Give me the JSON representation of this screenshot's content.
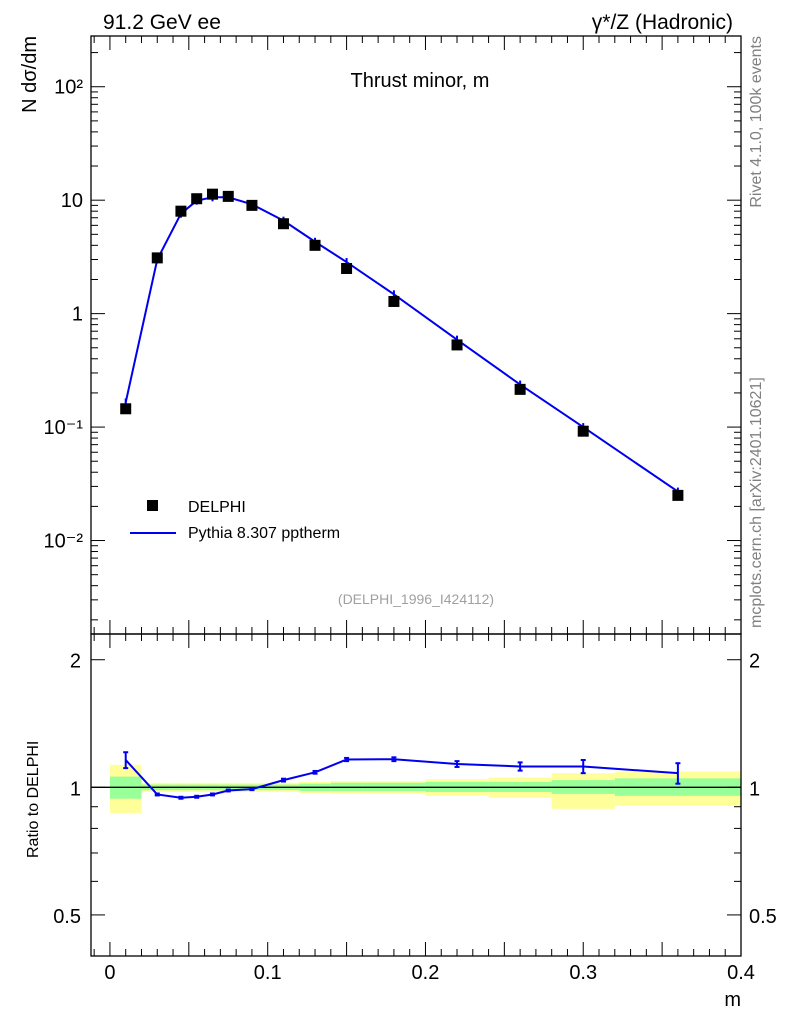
{
  "header": {
    "left": "91.2 GeV ee",
    "right": "γ*/Z (Hadronic)"
  },
  "side": {
    "rivet": "Rivet 4.1.0,  100k events",
    "source": "mcplots.cern.ch [arXiv:2401.10621]"
  },
  "chart_data": [
    {
      "type": "scatter",
      "panel": "main",
      "title": "Thrust minor, m",
      "ylabel": "N  dσ/dm",
      "analysis_label": "(DELPHI_1996_I424112)",
      "yscale": "log",
      "xlim": [
        -0.012,
        0.4
      ],
      "ylim": [
        0.0015,
        280
      ],
      "ytick_labels": [
        "10⁻²",
        "10⁻¹",
        "1",
        "10",
        "10²"
      ],
      "ytick_values": [
        0.01,
        0.1,
        1,
        10,
        100
      ],
      "legend": [
        "DELPHI",
        "Pythia 8.307 pptherm"
      ],
      "series": [
        {
          "name": "DELPHI",
          "style": "markers",
          "x": [
            0.01,
            0.03,
            0.045,
            0.055,
            0.065,
            0.075,
            0.09,
            0.11,
            0.13,
            0.15,
            0.18,
            0.22,
            0.26,
            0.3,
            0.36
          ],
          "y": [
            0.145,
            3.1,
            8.0,
            10.3,
            11.3,
            10.8,
            9.0,
            6.2,
            4.0,
            2.5,
            1.28,
            0.53,
            0.215,
            0.092,
            0.025
          ]
        },
        {
          "name": "Pythia 8.307 pptherm",
          "style": "line",
          "color": "#0000ee",
          "x": [
            0.01,
            0.03,
            0.045,
            0.055,
            0.065,
            0.075,
            0.09,
            0.11,
            0.13,
            0.15,
            0.18,
            0.22,
            0.26,
            0.3,
            0.36
          ],
          "y": [
            0.165,
            3.0,
            7.6,
            9.9,
            10.6,
            10.6,
            9.2,
            6.6,
            4.3,
            2.85,
            1.48,
            0.59,
            0.237,
            0.1,
            0.027
          ]
        }
      ]
    },
    {
      "type": "line",
      "panel": "ratio",
      "ylabel": "Ratio to DELPHI",
      "xlabel": "m",
      "xlim": [
        -0.012,
        0.4
      ],
      "ylim": [
        0.4,
        2.3
      ],
      "xtick_labels": [
        "0",
        "0.1",
        "0.2",
        "0.3",
        "0.4"
      ],
      "xtick_values": [
        0,
        0.1,
        0.2,
        0.3,
        0.4
      ],
      "ytick_labels": [
        "0.5",
        "1",
        "2"
      ],
      "ytick_values": [
        0.5,
        1,
        2
      ],
      "reference": 1,
      "bands": {
        "edges": [
          0.0,
          0.02,
          0.04,
          0.05,
          0.06,
          0.07,
          0.08,
          0.1,
          0.12,
          0.14,
          0.16,
          0.2,
          0.24,
          0.28,
          0.32,
          0.4
        ],
        "inner_lo": [
          0.94,
          0.985,
          0.985,
          0.985,
          0.985,
          0.985,
          0.985,
          0.985,
          0.98,
          0.98,
          0.98,
          0.975,
          0.975,
          0.965,
          0.955
        ],
        "inner_hi": [
          1.06,
          1.015,
          1.015,
          1.015,
          1.015,
          1.015,
          1.015,
          1.015,
          1.02,
          1.025,
          1.025,
          1.03,
          1.03,
          1.04,
          1.05
        ],
        "outer_lo": [
          0.87,
          0.975,
          0.975,
          0.975,
          0.975,
          0.975,
          0.975,
          0.975,
          0.97,
          0.965,
          0.965,
          0.955,
          0.945,
          0.89,
          0.905
        ],
        "outer_hi": [
          1.13,
          1.025,
          1.025,
          1.025,
          1.025,
          1.025,
          1.025,
          1.025,
          1.03,
          1.035,
          1.035,
          1.045,
          1.055,
          1.08,
          1.09
        ],
        "inner_color": "#99ff99",
        "outer_color": "#ffff99"
      },
      "series": [
        {
          "name": "Pythia 8.307 pptherm / DELPHI",
          "color": "#0000ee",
          "x": [
            0.01,
            0.03,
            0.045,
            0.055,
            0.065,
            0.075,
            0.09,
            0.11,
            0.13,
            0.15,
            0.18,
            0.22,
            0.26,
            0.3,
            0.36
          ],
          "y": [
            1.16,
            0.962,
            0.945,
            0.95,
            0.962,
            0.983,
            0.99,
            1.04,
            1.085,
            1.163,
            1.165,
            1.135,
            1.12,
            1.12,
            1.08
          ],
          "err": [
            0.05,
            0.005,
            0.005,
            0.005,
            0.005,
            0.005,
            0.005,
            0.008,
            0.008,
            0.01,
            0.012,
            0.018,
            0.025,
            0.04,
            0.06
          ]
        }
      ]
    }
  ]
}
